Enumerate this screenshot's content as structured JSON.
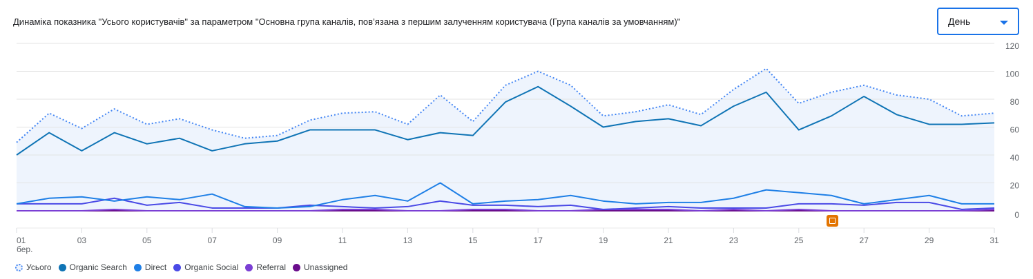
{
  "title": "Динаміка показника \"Усього користувачів\" за параметром \"Основна група каналів, пов’язана з першим залученням користувача (Група каналів за умовчанням)\"",
  "dropdown": {
    "selected": "День",
    "icon": "caret-down-icon"
  },
  "annotation_icon": "annotation-icon",
  "chart_data": {
    "type": "line",
    "title": "",
    "xlabel": "",
    "ylabel": "",
    "x": [
      1,
      2,
      3,
      4,
      5,
      6,
      7,
      8,
      9,
      10,
      11,
      12,
      13,
      14,
      15,
      16,
      17,
      18,
      19,
      20,
      21,
      22,
      23,
      24,
      25,
      26,
      27,
      28,
      29,
      30,
      31
    ],
    "x_tick_labels": [
      "01",
      "03",
      "05",
      "07",
      "09",
      "11",
      "13",
      "15",
      "17",
      "19",
      "21",
      "23",
      "25",
      "27",
      "29",
      "31"
    ],
    "x_tick_days": [
      1,
      3,
      5,
      7,
      9,
      11,
      13,
      15,
      17,
      19,
      21,
      23,
      25,
      27,
      29,
      31
    ],
    "x_sublabel": "бер.",
    "y_ticks": [
      0,
      20,
      40,
      60,
      80,
      100,
      120
    ],
    "ylim": [
      0,
      120
    ],
    "grid": true,
    "legend_position": "bottom-left",
    "series": [
      {
        "name": "Усього",
        "color": "#4285f4",
        "style": "dotted",
        "fill": "#eef4fd",
        "values": [
          49,
          70,
          59,
          73,
          62,
          66,
          58,
          52,
          54,
          65,
          70,
          71,
          62,
          83,
          64,
          90,
          100,
          90,
          68,
          71,
          76,
          69,
          87,
          102,
          77,
          85,
          90,
          83,
          80,
          68,
          70
        ]
      },
      {
        "name": "Organic Search",
        "color": "#0f74b5",
        "style": "solid",
        "values": [
          40,
          56,
          43,
          56,
          48,
          52,
          43,
          48,
          50,
          58,
          58,
          58,
          51,
          56,
          54,
          78,
          89,
          75,
          60,
          64,
          66,
          61,
          75,
          85,
          58,
          68,
          82,
          69,
          62,
          62,
          63
        ]
      },
      {
        "name": "Direct",
        "color": "#1e7fe6",
        "style": "solid",
        "values": [
          5,
          9,
          10,
          7,
          10,
          8,
          12,
          3,
          2,
          3,
          8,
          11,
          7,
          20,
          5,
          7,
          8,
          11,
          7,
          5,
          6,
          6,
          9,
          15,
          13,
          11,
          5,
          8,
          11,
          5,
          5
        ]
      },
      {
        "name": "Organic Social",
        "color": "#4a4ae6",
        "style": "solid",
        "values": [
          5,
          5,
          5,
          9,
          4,
          6,
          2,
          2,
          2,
          4,
          3,
          2,
          3,
          7,
          4,
          4,
          3,
          4,
          1,
          2,
          3,
          2,
          2,
          2,
          5,
          5,
          4,
          6,
          6,
          1,
          2
        ]
      },
      {
        "name": "Referral",
        "color": "#7b3fd4",
        "style": "solid",
        "values": [
          0,
          0,
          0,
          1,
          0,
          0,
          0,
          0,
          0,
          0,
          1,
          1,
          0,
          0,
          1,
          1,
          0,
          0,
          1,
          1,
          1,
          0,
          1,
          0,
          1,
          0,
          0,
          0,
          0,
          0,
          1
        ]
      },
      {
        "name": "Unassigned",
        "color": "#6a0d8c",
        "style": "solid",
        "values": [
          0,
          0,
          0,
          0,
          0,
          0,
          0,
          0,
          0,
          0,
          0,
          0,
          0,
          0,
          0,
          0,
          0,
          0,
          0,
          0,
          0,
          0,
          0,
          0,
          0,
          0,
          0,
          0,
          0,
          0,
          0
        ]
      }
    ]
  }
}
